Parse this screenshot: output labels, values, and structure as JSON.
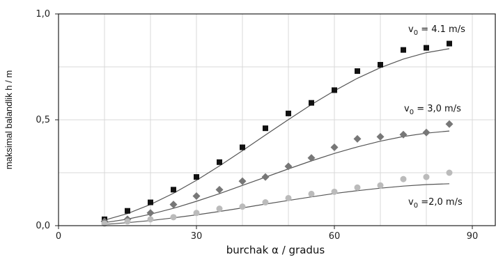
{
  "chart_data": {
    "type": "scatter",
    "xlabel": "burchak α / gradus",
    "ylabel": "maksimal balandlik h / m",
    "xlim": [
      0,
      95
    ],
    "ylim": [
      0,
      1.0
    ],
    "x_ticks": [
      0,
      30,
      60,
      90
    ],
    "x_tick_labels": [
      "0",
      "30",
      "60",
      "90"
    ],
    "y_ticks": [
      0,
      0.5,
      1.0
    ],
    "y_tick_labels": [
      "0,0",
      "0,5",
      "1,0"
    ],
    "grid": true,
    "series": [
      {
        "name": "v0 = 4.1 m/s",
        "label_main": "v",
        "label_sub": "0",
        "label_rest": " = 4.1 m/s",
        "marker": "square",
        "color": "#111111",
        "x": [
          10,
          15,
          20,
          25,
          30,
          35,
          40,
          45,
          50,
          55,
          60,
          65,
          70,
          75,
          80,
          85
        ],
        "y": [
          0.03,
          0.07,
          0.11,
          0.17,
          0.23,
          0.3,
          0.37,
          0.46,
          0.53,
          0.58,
          0.64,
          0.73,
          0.76,
          0.83,
          0.84,
          0.86
        ],
        "fit_x": [
          10,
          15,
          20,
          25,
          30,
          35,
          40,
          45,
          50,
          55,
          60,
          65,
          70,
          75,
          80,
          85
        ],
        "fit_y": [
          0.026,
          0.057,
          0.1,
          0.153,
          0.214,
          0.282,
          0.354,
          0.428,
          0.501,
          0.572,
          0.637,
          0.696,
          0.746,
          0.787,
          0.817,
          0.836
        ]
      },
      {
        "name": "v0 = 3,0 m/s",
        "label_main": "v",
        "label_sub": "0",
        "label_rest": " = 3,0 m/s",
        "marker": "diamond",
        "color": "#777777",
        "x": [
          10,
          15,
          20,
          25,
          30,
          35,
          40,
          45,
          50,
          55,
          60,
          65,
          70,
          75,
          80,
          85
        ],
        "y": [
          0.02,
          0.03,
          0.06,
          0.1,
          0.14,
          0.17,
          0.21,
          0.23,
          0.28,
          0.32,
          0.37,
          0.41,
          0.42,
          0.43,
          0.44,
          0.48
        ],
        "fit_x": [
          10,
          15,
          20,
          25,
          30,
          35,
          40,
          45,
          50,
          55,
          60,
          65,
          70,
          75,
          80,
          85
        ],
        "fit_y": [
          0.014,
          0.031,
          0.054,
          0.082,
          0.115,
          0.151,
          0.19,
          0.229,
          0.268,
          0.306,
          0.341,
          0.372,
          0.399,
          0.421,
          0.437,
          0.447
        ]
      },
      {
        "name": "v0 =2,0 m/s",
        "label_main": "v",
        "label_sub": "0",
        "label_rest": " =2,0 m/s",
        "marker": "circle",
        "color": "#bbbbbb",
        "x": [
          10,
          15,
          20,
          25,
          30,
          35,
          40,
          45,
          50,
          55,
          60,
          65,
          70,
          75,
          80,
          85
        ],
        "y": [
          0.01,
          0.02,
          0.03,
          0.04,
          0.06,
          0.08,
          0.09,
          0.11,
          0.13,
          0.15,
          0.16,
          0.18,
          0.19,
          0.22,
          0.23,
          0.25
        ],
        "fit_x": [
          10,
          15,
          20,
          25,
          30,
          35,
          40,
          45,
          50,
          55,
          60,
          65,
          70,
          75,
          80,
          85
        ],
        "fit_y": [
          0.006,
          0.014,
          0.024,
          0.037,
          0.051,
          0.067,
          0.084,
          0.102,
          0.119,
          0.136,
          0.152,
          0.165,
          0.177,
          0.187,
          0.194,
          0.198
        ]
      }
    ]
  }
}
